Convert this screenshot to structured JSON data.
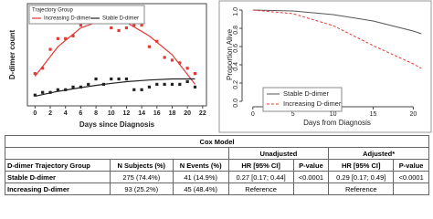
{
  "chart_data": [
    {
      "type": "scatter",
      "y_label": "D-dimer count",
      "x_label": "Days since Diagnosis",
      "legend_title": "Trajectory Group",
      "x": [
        0,
        1,
        2,
        3,
        4,
        5,
        6,
        7,
        8,
        9,
        10,
        11,
        12,
        13,
        14,
        15,
        16,
        17,
        18,
        19,
        20,
        21
      ],
      "fit_x": [
        0,
        3,
        6,
        9,
        12,
        15,
        18,
        21
      ],
      "series": [
        {
          "name": "Increasing D-dimer",
          "color": "#e53935",
          "values": [
            6,
            7,
            10.5,
            12.5,
            12.5,
            13,
            15,
            16,
            16.5,
            18,
            14.5,
            14,
            14.5,
            15,
            15,
            11,
            12,
            9,
            8.5,
            8,
            7,
            6
          ],
          "fit": [
            5.5,
            11,
            14.5,
            16,
            15.5,
            13,
            9.5,
            4
          ]
        },
        {
          "name": "Stable D-dimer",
          "color": "#222222",
          "values": [
            2,
            2.5,
            2.5,
            3,
            3,
            3.5,
            3.5,
            4,
            5,
            4,
            5,
            5,
            5,
            3,
            3,
            3.5,
            4,
            4,
            4,
            4,
            4.5,
            3.5
          ],
          "fit": [
            1.8,
            2.7,
            3.4,
            4,
            4.5,
            4.8,
            5,
            5
          ]
        }
      ],
      "xlim": [
        -1,
        22.5
      ],
      "ylim": [
        0,
        19
      ],
      "xticks": [
        0,
        2,
        4,
        6,
        8,
        10,
        12,
        14,
        16,
        18,
        20,
        22
      ]
    },
    {
      "type": "line",
      "y_label": "Proportion Alive",
      "x_label": "Days from Diagnosis",
      "x": [
        0,
        5,
        10,
        15,
        20,
        21
      ],
      "series": [
        {
          "name": "Stable D-dimer",
          "color": "#555555",
          "dash": false,
          "values": [
            1.0,
            0.99,
            0.95,
            0.88,
            0.77,
            0.74
          ]
        },
        {
          "name": "Increasing D-dimer",
          "color": "#e53935",
          "dash": true,
          "values": [
            1.0,
            0.96,
            0.83,
            0.61,
            0.41,
            0.36
          ]
        }
      ],
      "xlim": [
        -1,
        22
      ],
      "ylim": [
        -0.03,
        1.05
      ],
      "xticks": [
        0,
        5,
        10,
        15,
        20
      ],
      "yticks": [
        {
          "value": 0,
          "label": "0.0"
        },
        {
          "value": 0.2,
          "label": "0.2"
        },
        {
          "value": 0.4,
          "label": "0.4"
        },
        {
          "value": 0.6,
          "label": "0.6"
        },
        {
          "value": 0.8,
          "label": "0.8"
        },
        {
          "value": 1,
          "label": "1.0"
        }
      ]
    }
  ],
  "table": {
    "title": "Cox Model",
    "groups": [
      "Unadjusted",
      "Adjusted*"
    ],
    "columns": [
      "D-dimer Trajectory Group",
      "N Subjects (%)",
      "N Events (%)",
      "HR [95% CI]",
      "P-value",
      "HR [95% CI]",
      "P-value"
    ],
    "rows": [
      [
        "Stable D-dimer",
        "275 (74.4%)",
        "41 (14.9%)",
        "0.27 [0.17; 0.44]",
        "<0.0001",
        "0.29 [0.17; 0.49]",
        "<0.0001"
      ],
      [
        "Increasing D-dimer",
        "93 (25.2%)",
        "45 (48.4%)",
        "Reference",
        "",
        "Reference",
        ""
      ]
    ]
  }
}
